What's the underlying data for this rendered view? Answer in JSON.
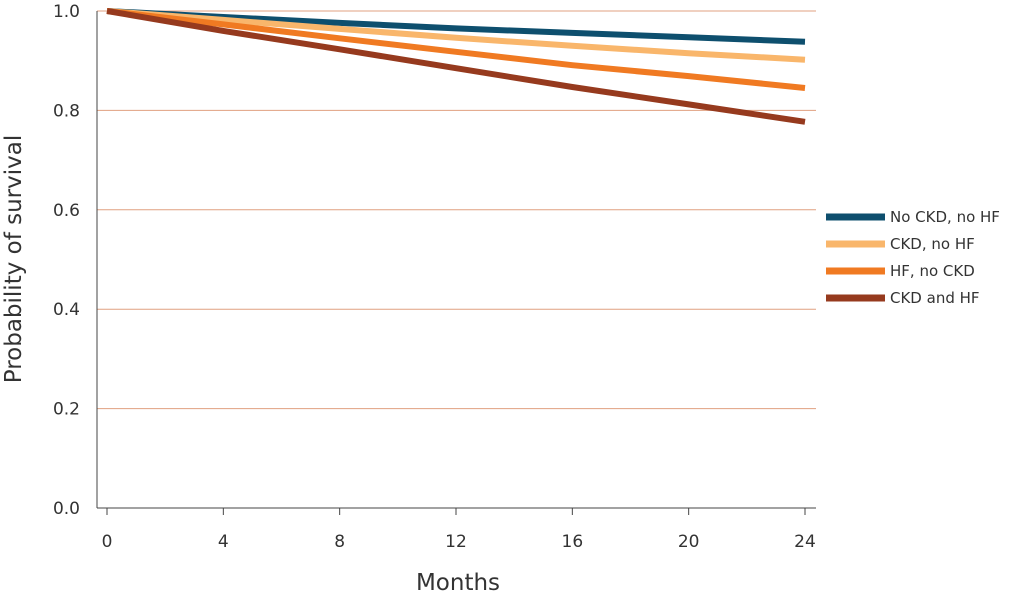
{
  "chart_data": {
    "type": "line",
    "title": "",
    "xlabel": "Months",
    "ylabel": "Probability of survival",
    "xlim": [
      0,
      24
    ],
    "ylim": [
      0.0,
      1.0
    ],
    "x_ticks": [
      0,
      4,
      8,
      12,
      16,
      20,
      24
    ],
    "x_tick_labels": [
      "0",
      "4",
      "8",
      "12",
      "16",
      "20",
      "24"
    ],
    "y_ticks": [
      0.0,
      0.2,
      0.4,
      0.6,
      0.8,
      1.0
    ],
    "y_tick_labels": [
      "0.0",
      "0.2",
      "0.4",
      "0.6",
      "0.8",
      "1.0"
    ],
    "grid": "horizontal",
    "gridline_color": "#E0A080",
    "legend_position": "right",
    "x": [
      0,
      4,
      8,
      12,
      16,
      20,
      24
    ],
    "series": [
      {
        "name": "No CKD, no HF",
        "color": "#0E4F6E",
        "values": [
          1.0,
          0.988,
          0.976,
          0.965,
          0.956,
          0.947,
          0.938
        ]
      },
      {
        "name": "CKD, no HF",
        "color": "#F9B66B",
        "values": [
          1.0,
          0.982,
          0.964,
          0.946,
          0.93,
          0.915,
          0.902
        ]
      },
      {
        "name": "HF, no CKD",
        "color": "#F07A22",
        "values": [
          1.0,
          0.973,
          0.945,
          0.918,
          0.891,
          0.869,
          0.845
        ]
      },
      {
        "name": "CKD and HF",
        "color": "#963A1E",
        "values": [
          1.0,
          0.96,
          0.923,
          0.885,
          0.847,
          0.812,
          0.777
        ]
      }
    ]
  }
}
